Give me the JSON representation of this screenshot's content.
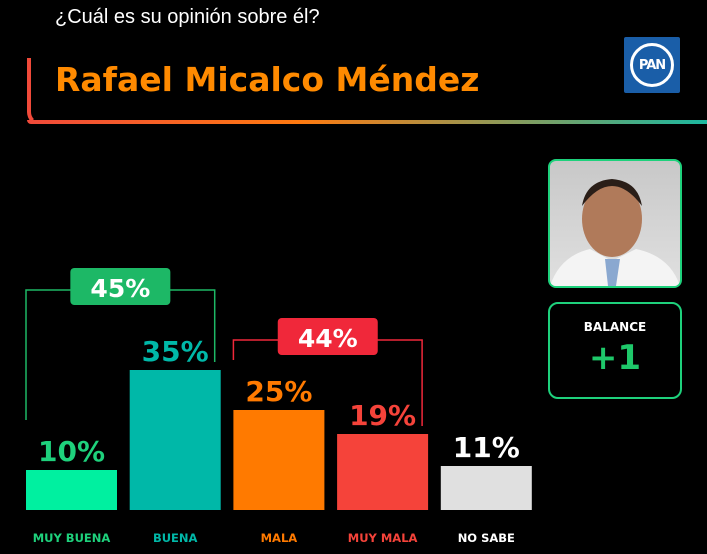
{
  "header": {
    "question": "¿Cuál es su opinión sobre él?",
    "candidate": "Rafael Micalco Méndez",
    "party_logo": "PAN"
  },
  "balance": {
    "label": "BALANCE",
    "value": "+1"
  },
  "chart_data": {
    "type": "bar",
    "categories": [
      "MUY BUENA",
      "BUENA",
      "MALA",
      "MUY MALA",
      "NO SABE"
    ],
    "values": [
      10,
      35,
      25,
      19,
      11
    ],
    "value_labels": [
      "10%",
      "35%",
      "25%",
      "19%",
      "11%"
    ],
    "colors": [
      "#00f0a0",
      "#00b8a8",
      "#ff7a00",
      "#f5433a",
      "#e0e0e0"
    ],
    "label_colors": [
      "#1ed17c",
      "#00b8a8",
      "#ff7a00",
      "#f5433a",
      "#ffffff"
    ],
    "groups": [
      {
        "label": "45%",
        "from": 0,
        "to": 1,
        "color": "#1db866"
      },
      {
        "label": "44%",
        "from": 2,
        "to": 3,
        "color": "#f0283a"
      }
    ],
    "ylim": [
      0,
      45
    ]
  }
}
